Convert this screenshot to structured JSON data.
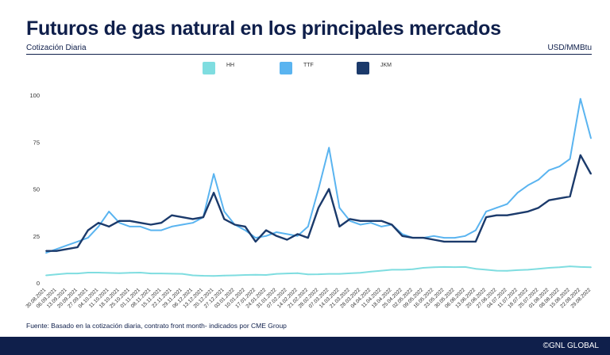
{
  "header": {
    "title": "Futuros de gas natural en los principales mercados",
    "subtitle": "Cotización Diaria",
    "unit": "USD/MMBtu"
  },
  "legend": [
    {
      "label": "HH",
      "color": "#7fdde0"
    },
    {
      "label": "TTF",
      "color": "#5ab4f0"
    },
    {
      "label": "JKM",
      "color": "#1b3a6b"
    }
  ],
  "source": "Fuente: Basado en la cotización diaria, contrato front month- indicados por CME Group",
  "footer": {
    "brand": "©GNL GLOBAL"
  },
  "chart_data": {
    "type": "line",
    "title": "Futuros de gas natural en los principales mercados",
    "ylim": [
      0,
      100
    ],
    "yticks": [
      0,
      25,
      50,
      75,
      100
    ],
    "grid": false,
    "legend_position": "top",
    "x": [
      "30.08.2021",
      "06.09.2021",
      "13.09.2021",
      "20.09.2021",
      "27.09.2021",
      "04.10.2021",
      "11.10.2021",
      "18.10.2021",
      "25.10.2021",
      "01.11.2021",
      "08.11.2021",
      "15.11.2021",
      "22.11.2021",
      "29.11.2021",
      "06.12.2021",
      "13.12.2021",
      "20.12.2021",
      "27.12.2021",
      "03.01.2022",
      "10.01.2022",
      "17.01.2022",
      "24.01.2022",
      "31.01.2022",
      "07.02.2022",
      "14.02.2022",
      "21.02.2022",
      "28.02.2022",
      "07.03.2022",
      "14.03.2022",
      "21.03.2022",
      "28.03.2022",
      "04.04.2022",
      "11.04.2022",
      "18.04.2022",
      "25.04.2022",
      "02.05.2022",
      "09.05.2022",
      "16.05.2022",
      "23.05.2022",
      "30.05.2022",
      "06.06.2022",
      "13.06.2022",
      "20.06.2022",
      "27.06.2022",
      "04.07.2022",
      "11.07.2022",
      "18.07.2022",
      "25.07.2022",
      "01.08.2022",
      "08.08.2022",
      "15.08.2022",
      "22.08.2022",
      "29.08.2022"
    ],
    "tick_labels": [
      "30.08.2021",
      "06.09.2021",
      "13.09.2021",
      "20.09.2021",
      "27.09.2021",
      "04.10.2021",
      "11.10.2021",
      "18.10.2021",
      "25.10.2021",
      "01.11.2021",
      "08.11.2021",
      "15.11.2021",
      "22.11.2021",
      "29.11.2021",
      "06.12.2021",
      "13.12.2021",
      "20.12.2021",
      "27.12.2021",
      "03.01.2022",
      "10.01.2022",
      "17.01.2022",
      "24.01.2022",
      "31.01.2022",
      "07.02.2022",
      "14.02.2022",
      "21.02.2022",
      "28.02.2022",
      "07.03.2022",
      "14.03.2022",
      "21.03.2022",
      "28.03.2022",
      "04.04.2022",
      "11.04.2022",
      "18.04.2022",
      "25.04.2022",
      "02.05.2022",
      "09.05.2022",
      "16.05.2022",
      "23.05.2022",
      "30.05.2022",
      "06.06.2022",
      "13.06.2022",
      "20.06.2022",
      "27.06.2022",
      "04.07.2022",
      "11.07.2022",
      "18.07.2022",
      "25.07.2022",
      "01.08.2022",
      "08.08.2022",
      "15.08.2022",
      "22.08.2022",
      "29.08.2022"
    ],
    "series": [
      {
        "name": "HH",
        "color": "#7fdde0",
        "values": [
          4,
          4.5,
          5,
          5,
          5.5,
          5.5,
          5.3,
          5.2,
          5.4,
          5.5,
          5,
          5,
          4.9,
          4.8,
          4,
          3.8,
          3.7,
          3.9,
          4,
          4.2,
          4.3,
          4.2,
          4.8,
          5,
          5.2,
          4.5,
          4.6,
          4.8,
          4.8,
          5.1,
          5.4,
          6,
          6.5,
          7,
          7,
          7.3,
          8,
          8.3,
          8.5,
          8.4,
          8.5,
          7.5,
          7,
          6.5,
          6.4,
          6.8,
          7,
          7.5,
          8,
          8.3,
          8.8,
          8.5,
          8.3
        ]
      },
      {
        "name": "TTF",
        "color": "#5ab4f0",
        "values": [
          16,
          18,
          20,
          22,
          24,
          30,
          38,
          32,
          30,
          30,
          28,
          28,
          30,
          31,
          32,
          35,
          58,
          38,
          31,
          28,
          24,
          25,
          27,
          26,
          25,
          30,
          50,
          72,
          40,
          33,
          31,
          32,
          30,
          31,
          26,
          24,
          24,
          25,
          24,
          24,
          25,
          28,
          38,
          40,
          42,
          48,
          52,
          55,
          60,
          62,
          66,
          98,
          77
        ]
      },
      {
        "name": "JKM",
        "color": "#1b3a6b",
        "values": [
          17,
          17,
          18,
          19,
          28,
          32,
          30,
          33,
          33,
          32,
          31,
          32,
          36,
          35,
          34,
          35,
          48,
          34,
          31,
          30,
          22,
          28,
          25,
          23,
          26,
          24,
          40,
          50,
          30,
          34,
          33,
          33,
          33,
          31,
          25,
          24,
          24,
          23,
          22,
          22,
          22,
          22,
          35,
          36,
          36,
          37,
          38,
          40,
          44,
          45,
          46,
          68,
          58
        ]
      }
    ]
  }
}
